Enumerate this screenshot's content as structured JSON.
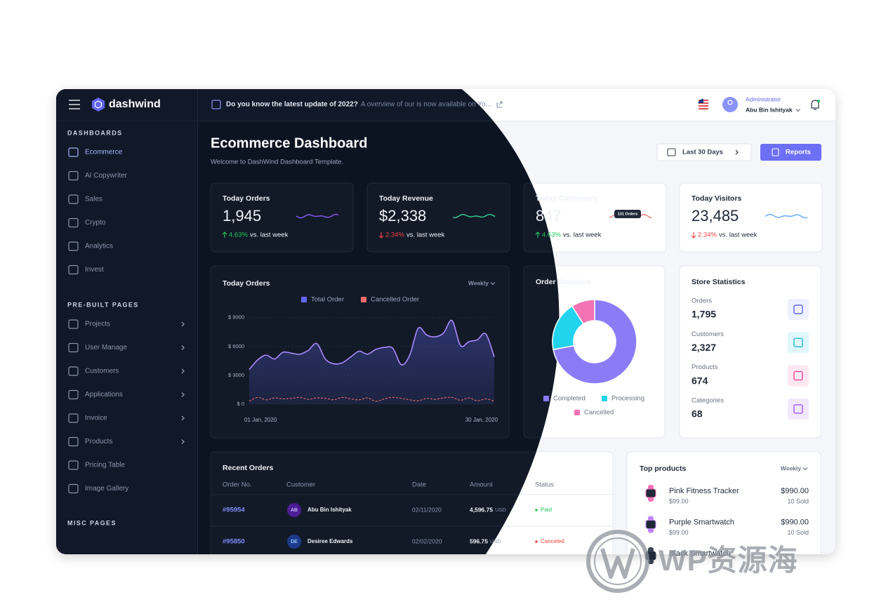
{
  "sidebar": {
    "brand": "dashwind",
    "sections": [
      {
        "title": "DASHBOARDS",
        "items": [
          {
            "label": "Ecommerce",
            "has_submenu": false,
            "active": true
          },
          {
            "label": "AI Copywriter",
            "has_submenu": false,
            "active": false
          },
          {
            "label": "Sales",
            "has_submenu": false,
            "active": false
          },
          {
            "label": "Crypto",
            "has_submenu": false,
            "active": false
          },
          {
            "label": "Analytics",
            "has_submenu": false,
            "active": false
          },
          {
            "label": "Invest",
            "has_submenu": false,
            "active": false
          }
        ]
      },
      {
        "title": "PRE-BUILT PAGES",
        "items": [
          {
            "label": "Projects",
            "has_submenu": true,
            "active": false
          },
          {
            "label": "User Manage",
            "has_submenu": true,
            "active": false
          },
          {
            "label": "Customers",
            "has_submenu": true,
            "active": false
          },
          {
            "label": "Applications",
            "has_submenu": true,
            "active": false
          },
          {
            "label": "Invoice",
            "has_submenu": true,
            "active": false
          },
          {
            "label": "Products",
            "has_submenu": true,
            "active": false
          },
          {
            "label": "Pricing Table",
            "has_submenu": false,
            "active": false
          },
          {
            "label": "Image Gallery",
            "has_submenu": false,
            "active": false
          }
        ]
      },
      {
        "title": "MISC PAGES",
        "items": []
      }
    ]
  },
  "topbar": {
    "announcement_title": "Do you know the latest update of 2022?",
    "announcement_text": "A overview of our is now available on Yo...",
    "user_role": "Administrator",
    "user_name": "Abu Bin Ishityak"
  },
  "header": {
    "title": "Ecommerce Dashboard",
    "subtitle": "Welcome to DashWind Dashboard Template.",
    "range_button": "Last 30 Days",
    "reports_button": "Reports"
  },
  "stats": [
    {
      "title": "Today Orders",
      "value": "1,945",
      "change": "4.63%",
      "direction": "up",
      "note": "vs. last week"
    },
    {
      "title": "Today Revenue",
      "value": "$2,338",
      "change": "2.34%",
      "direction": "down",
      "note": "vs. last week"
    },
    {
      "title": "Today Customers",
      "value": "847",
      "change": "4.63%",
      "direction": "up",
      "note": "vs. last week",
      "tooltip": "131 Orders"
    },
    {
      "title": "Today Visitors",
      "value": "23,485",
      "change": "2.34%",
      "direction": "down",
      "note": "vs. last week"
    }
  ],
  "orders_chart": {
    "type": "area",
    "title": "Today Orders",
    "period": "Weekly",
    "categories": [
      "01 Jan, 2020",
      null,
      null,
      null,
      null,
      null,
      null,
      null,
      null,
      null,
      null,
      null,
      null,
      null,
      null,
      null,
      null,
      null,
      null,
      null,
      null,
      null,
      null,
      null,
      null,
      null,
      null,
      null,
      null,
      "30 Jan, 2020"
    ],
    "series": [
      {
        "name": "Total Order",
        "color": "#6366f1",
        "values": [
          3600,
          4600,
          5100,
          4700,
          5400,
          5300,
          5200,
          5600,
          6300,
          4700,
          4200,
          4300,
          4900,
          5500,
          5200,
          5700,
          5900,
          5800,
          4100,
          5100,
          7900,
          7200,
          7000,
          7400,
          8700,
          6100,
          6500,
          6700,
          7300,
          4900
        ]
      },
      {
        "name": "Cancelled Order",
        "color": "#ef6b6b",
        "values": [
          300,
          700,
          450,
          650,
          550,
          600,
          700,
          500,
          650,
          600,
          450,
          700,
          550,
          450,
          650,
          300,
          550,
          700,
          600,
          450,
          350,
          600,
          500,
          650,
          700,
          400,
          650,
          350,
          550,
          300
        ]
      }
    ],
    "ylim": [
      0,
      10000
    ],
    "yticks": [
      {
        "value": 0,
        "label": "$ 0"
      },
      {
        "value": 3000,
        "label": "$ 3000"
      },
      {
        "value": 6000,
        "label": "$ 6000"
      },
      {
        "value": 9000,
        "label": "$ 9000"
      }
    ],
    "grid": true
  },
  "order_statistics": {
    "type": "donut",
    "title": "Order Statistics",
    "categories": [
      "Completed",
      "Processing",
      "Cancelled"
    ],
    "values": [
      72,
      19,
      9
    ],
    "colors": [
      "#8b7cf6",
      "#22d3ee",
      "#f472b6"
    ]
  },
  "store_statistics": {
    "title": "Store Statistics",
    "items": [
      {
        "label": "Orders",
        "value": "1,795"
      },
      {
        "label": "Customers",
        "value": "2,327"
      },
      {
        "label": "Products",
        "value": "674"
      },
      {
        "label": "Categories",
        "value": "68"
      }
    ]
  },
  "recent_orders": {
    "title": "Recent Orders",
    "columns": [
      "Order No.",
      "Customer",
      "Date",
      "Amount",
      "Status"
    ],
    "rows": [
      {
        "order": "#95954",
        "initials": "AB",
        "customer": "Abu Bin Ishityak",
        "date": "02/11/2020",
        "amount": "4,596.75",
        "currency": "USD",
        "status": {
          "label": "Paid",
          "color": "#22c55e"
        }
      },
      {
        "order": "#95850",
        "initials": "DE",
        "customer": "Desiree Edwards",
        "date": "02/02/2020",
        "amount": "596.75",
        "currency": "USD",
        "status": {
          "label": "Canceled",
          "color": "#ef4444"
        }
      }
    ]
  },
  "top_products": {
    "title": "Top products",
    "period": "Weekly",
    "items": [
      {
        "name": "Pink Fitness Tracker",
        "unit_price": "$99.00",
        "total": "$990.00",
        "sold": "10 Sold"
      },
      {
        "name": "Purple Smartwatch",
        "unit_price": "$99.00",
        "total": "$990.00",
        "sold": "10 Sold"
      },
      {
        "name": "Black Smartwatch",
        "unit_price": "",
        "total": "",
        "sold": ""
      }
    ]
  },
  "watermark": "WP资源海"
}
